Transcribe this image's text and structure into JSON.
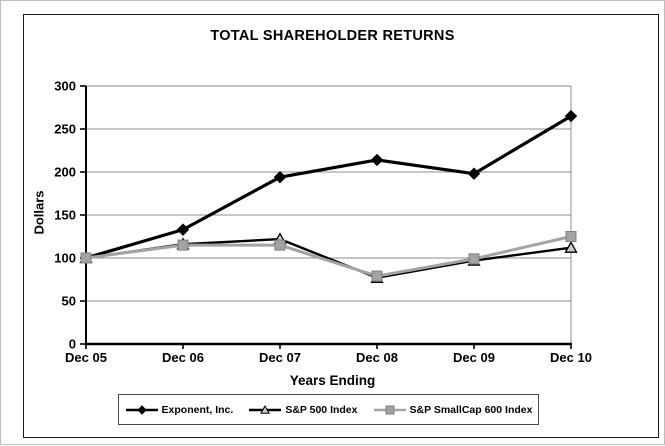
{
  "chart_data": {
    "type": "line",
    "title": "TOTAL SHAREHOLDER RETURNS",
    "xlabel": "Years Ending",
    "ylabel": "Dollars",
    "categories": [
      "Dec 05",
      "Dec 06",
      "Dec 07",
      "Dec 08",
      "Dec 09",
      "Dec 10"
    ],
    "y_ticks": [
      0,
      50,
      100,
      150,
      200,
      250,
      300
    ],
    "ylim": [
      0,
      300
    ],
    "grid": true,
    "legend_position": "bottom",
    "colors": {
      "axis": "#000000",
      "gridline": "#8c8c8c",
      "plot_border": "#8c8c8c",
      "smallcap_gray": "#a3a3a3",
      "triangle_fill": "#c8c8c8"
    },
    "series": [
      {
        "name": "Exponent, Inc.",
        "marker": "diamond",
        "line_color": "#000000",
        "line_width": 3.2,
        "marker_color": "#000000",
        "marker_edge": "#000000",
        "values": [
          100,
          133,
          194,
          214,
          198,
          265
        ]
      },
      {
        "name": "S&P 500 Index",
        "marker": "triangle",
        "line_color": "#000000",
        "line_width": 2.4,
        "marker_color": "#c8c8c8",
        "marker_edge": "#000000",
        "values": [
          100,
          116,
          122,
          77,
          97,
          112
        ]
      },
      {
        "name": "S&P SmallCap 600 Index",
        "marker": "square",
        "line_color": "#a3a3a3",
        "line_width": 3,
        "marker_color": "#a3a3a3",
        "marker_edge": "#7f7f7f",
        "values": [
          100,
          115,
          115,
          79,
          99,
          125
        ]
      }
    ]
  }
}
